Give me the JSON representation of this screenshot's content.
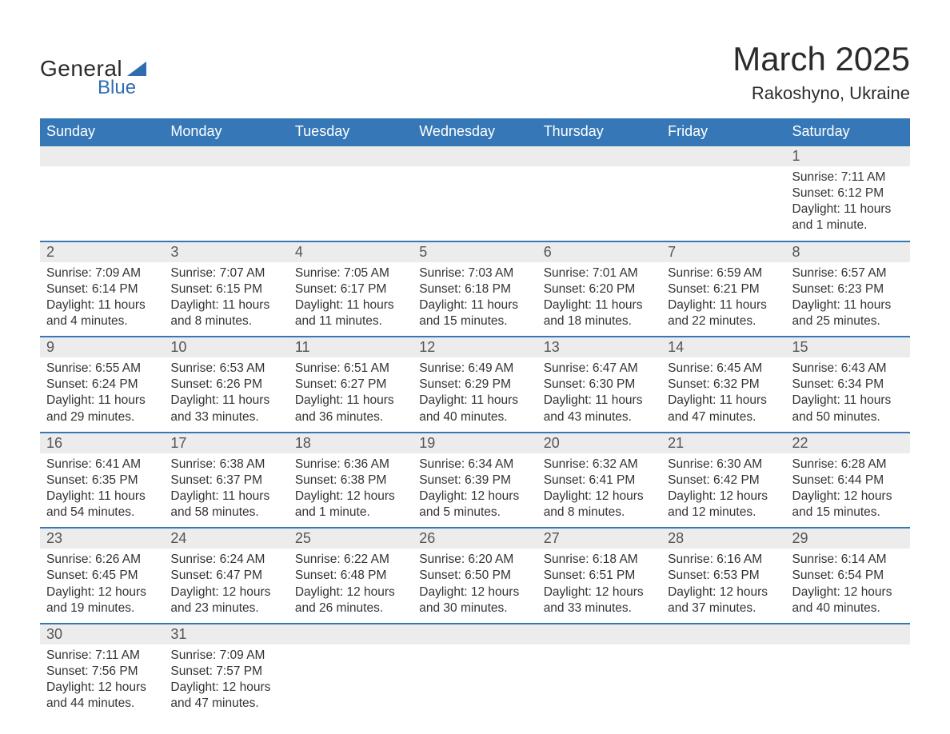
{
  "logo": {
    "text1": "General",
    "text2": "Blue",
    "brand_color": "#2f6daf"
  },
  "title": "March 2025",
  "location": "Rakoshyno, Ukraine",
  "header_bg": "#3678b7",
  "daynum_bg": "#ececec",
  "week_border": "#3678b7",
  "text_color": "#333333",
  "font_family": "Arial, Helvetica, sans-serif",
  "days_of_week": [
    "Sunday",
    "Monday",
    "Tuesday",
    "Wednesday",
    "Thursday",
    "Friday",
    "Saturday"
  ],
  "weeks": [
    [
      null,
      null,
      null,
      null,
      null,
      null,
      {
        "n": "1",
        "sr": "Sunrise: 7:11 AM",
        "ss": "Sunset: 6:12 PM",
        "d1": "Daylight: 11 hours",
        "d2": "and 1 minute."
      }
    ],
    [
      {
        "n": "2",
        "sr": "Sunrise: 7:09 AM",
        "ss": "Sunset: 6:14 PM",
        "d1": "Daylight: 11 hours",
        "d2": "and 4 minutes."
      },
      {
        "n": "3",
        "sr": "Sunrise: 7:07 AM",
        "ss": "Sunset: 6:15 PM",
        "d1": "Daylight: 11 hours",
        "d2": "and 8 minutes."
      },
      {
        "n": "4",
        "sr": "Sunrise: 7:05 AM",
        "ss": "Sunset: 6:17 PM",
        "d1": "Daylight: 11 hours",
        "d2": "and 11 minutes."
      },
      {
        "n": "5",
        "sr": "Sunrise: 7:03 AM",
        "ss": "Sunset: 6:18 PM",
        "d1": "Daylight: 11 hours",
        "d2": "and 15 minutes."
      },
      {
        "n": "6",
        "sr": "Sunrise: 7:01 AM",
        "ss": "Sunset: 6:20 PM",
        "d1": "Daylight: 11 hours",
        "d2": "and 18 minutes."
      },
      {
        "n": "7",
        "sr": "Sunrise: 6:59 AM",
        "ss": "Sunset: 6:21 PM",
        "d1": "Daylight: 11 hours",
        "d2": "and 22 minutes."
      },
      {
        "n": "8",
        "sr": "Sunrise: 6:57 AM",
        "ss": "Sunset: 6:23 PM",
        "d1": "Daylight: 11 hours",
        "d2": "and 25 minutes."
      }
    ],
    [
      {
        "n": "9",
        "sr": "Sunrise: 6:55 AM",
        "ss": "Sunset: 6:24 PM",
        "d1": "Daylight: 11 hours",
        "d2": "and 29 minutes."
      },
      {
        "n": "10",
        "sr": "Sunrise: 6:53 AM",
        "ss": "Sunset: 6:26 PM",
        "d1": "Daylight: 11 hours",
        "d2": "and 33 minutes."
      },
      {
        "n": "11",
        "sr": "Sunrise: 6:51 AM",
        "ss": "Sunset: 6:27 PM",
        "d1": "Daylight: 11 hours",
        "d2": "and 36 minutes."
      },
      {
        "n": "12",
        "sr": "Sunrise: 6:49 AM",
        "ss": "Sunset: 6:29 PM",
        "d1": "Daylight: 11 hours",
        "d2": "and 40 minutes."
      },
      {
        "n": "13",
        "sr": "Sunrise: 6:47 AM",
        "ss": "Sunset: 6:30 PM",
        "d1": "Daylight: 11 hours",
        "d2": "and 43 minutes."
      },
      {
        "n": "14",
        "sr": "Sunrise: 6:45 AM",
        "ss": "Sunset: 6:32 PM",
        "d1": "Daylight: 11 hours",
        "d2": "and 47 minutes."
      },
      {
        "n": "15",
        "sr": "Sunrise: 6:43 AM",
        "ss": "Sunset: 6:34 PM",
        "d1": "Daylight: 11 hours",
        "d2": "and 50 minutes."
      }
    ],
    [
      {
        "n": "16",
        "sr": "Sunrise: 6:41 AM",
        "ss": "Sunset: 6:35 PM",
        "d1": "Daylight: 11 hours",
        "d2": "and 54 minutes."
      },
      {
        "n": "17",
        "sr": "Sunrise: 6:38 AM",
        "ss": "Sunset: 6:37 PM",
        "d1": "Daylight: 11 hours",
        "d2": "and 58 minutes."
      },
      {
        "n": "18",
        "sr": "Sunrise: 6:36 AM",
        "ss": "Sunset: 6:38 PM",
        "d1": "Daylight: 12 hours",
        "d2": "and 1 minute."
      },
      {
        "n": "19",
        "sr": "Sunrise: 6:34 AM",
        "ss": "Sunset: 6:39 PM",
        "d1": "Daylight: 12 hours",
        "d2": "and 5 minutes."
      },
      {
        "n": "20",
        "sr": "Sunrise: 6:32 AM",
        "ss": "Sunset: 6:41 PM",
        "d1": "Daylight: 12 hours",
        "d2": "and 8 minutes."
      },
      {
        "n": "21",
        "sr": "Sunrise: 6:30 AM",
        "ss": "Sunset: 6:42 PM",
        "d1": "Daylight: 12 hours",
        "d2": "and 12 minutes."
      },
      {
        "n": "22",
        "sr": "Sunrise: 6:28 AM",
        "ss": "Sunset: 6:44 PM",
        "d1": "Daylight: 12 hours",
        "d2": "and 15 minutes."
      }
    ],
    [
      {
        "n": "23",
        "sr": "Sunrise: 6:26 AM",
        "ss": "Sunset: 6:45 PM",
        "d1": "Daylight: 12 hours",
        "d2": "and 19 minutes."
      },
      {
        "n": "24",
        "sr": "Sunrise: 6:24 AM",
        "ss": "Sunset: 6:47 PM",
        "d1": "Daylight: 12 hours",
        "d2": "and 23 minutes."
      },
      {
        "n": "25",
        "sr": "Sunrise: 6:22 AM",
        "ss": "Sunset: 6:48 PM",
        "d1": "Daylight: 12 hours",
        "d2": "and 26 minutes."
      },
      {
        "n": "26",
        "sr": "Sunrise: 6:20 AM",
        "ss": "Sunset: 6:50 PM",
        "d1": "Daylight: 12 hours",
        "d2": "and 30 minutes."
      },
      {
        "n": "27",
        "sr": "Sunrise: 6:18 AM",
        "ss": "Sunset: 6:51 PM",
        "d1": "Daylight: 12 hours",
        "d2": "and 33 minutes."
      },
      {
        "n": "28",
        "sr": "Sunrise: 6:16 AM",
        "ss": "Sunset: 6:53 PM",
        "d1": "Daylight: 12 hours",
        "d2": "and 37 minutes."
      },
      {
        "n": "29",
        "sr": "Sunrise: 6:14 AM",
        "ss": "Sunset: 6:54 PM",
        "d1": "Daylight: 12 hours",
        "d2": "and 40 minutes."
      }
    ],
    [
      {
        "n": "30",
        "sr": "Sunrise: 7:11 AM",
        "ss": "Sunset: 7:56 PM",
        "d1": "Daylight: 12 hours",
        "d2": "and 44 minutes."
      },
      {
        "n": "31",
        "sr": "Sunrise: 7:09 AM",
        "ss": "Sunset: 7:57 PM",
        "d1": "Daylight: 12 hours",
        "d2": "and 47 minutes."
      },
      null,
      null,
      null,
      null,
      null
    ]
  ]
}
